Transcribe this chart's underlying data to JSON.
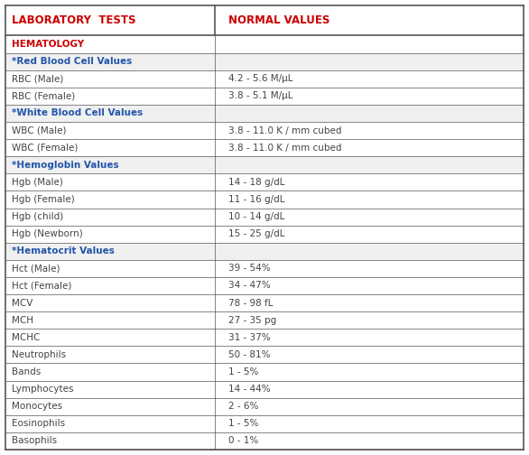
{
  "header": [
    "LABORATORY  TESTS",
    "NORMAL VALUES"
  ],
  "rows": [
    {
      "label": "HEMATOLOGY",
      "value": "",
      "type": "section_red"
    },
    {
      "label": "*Red Blood Cell Values",
      "value": "",
      "type": "subheader_blue"
    },
    {
      "label": "RBC (Male)",
      "value": "4.2 - 5.6 M/μL",
      "type": "data"
    },
    {
      "label": "RBC (Female)",
      "value": "3.8 - 5.1 M/μL",
      "type": "data"
    },
    {
      "label": "*White Blood Cell Values",
      "value": "",
      "type": "subheader_blue"
    },
    {
      "label": "WBC (Male)",
      "value": "3.8 - 11.0 K / mm cubed",
      "type": "data"
    },
    {
      "label": "WBC (Female)",
      "value": "3.8 - 11.0 K / mm cubed",
      "type": "data"
    },
    {
      "label": "*Hemoglobin Values",
      "value": "",
      "type": "subheader_blue"
    },
    {
      "label": "Hgb (Male)",
      "value": "14 - 18 g/dL",
      "type": "data"
    },
    {
      "label": "Hgb (Female)",
      "value": "11 - 16 g/dL",
      "type": "data"
    },
    {
      "label": "Hgb (child)",
      "value": "10 - 14 g/dL",
      "type": "data"
    },
    {
      "label": "Hgb (Newborn)",
      "value": "15 - 25 g/dL",
      "type": "data"
    },
    {
      "label": "*Hematocrit Values",
      "value": "",
      "type": "subheader_blue"
    },
    {
      "label": "Hct (Male)",
      "value": "39 - 54%",
      "type": "data"
    },
    {
      "label": "Hct (Female)",
      "value": "34 - 47%",
      "type": "data"
    },
    {
      "label": "MCV",
      "value": "78 - 98 fL",
      "type": "data"
    },
    {
      "label": "MCH",
      "value": "27 - 35 pg",
      "type": "data"
    },
    {
      "label": "MCHC",
      "value": "31 - 37%",
      "type": "data"
    },
    {
      "label": "Neutrophils",
      "value": "50 - 81%",
      "type": "data"
    },
    {
      "label": "Bands",
      "value": "1 - 5%",
      "type": "data"
    },
    {
      "label": "Lymphocytes",
      "value": "14 - 44%",
      "type": "data"
    },
    {
      "label": "Monocytes",
      "value": "2 - 6%",
      "type": "data"
    },
    {
      "label": "Eosinophils",
      "value": "1 - 5%",
      "type": "data"
    },
    {
      "label": "Basophils",
      "value": "0 - 1%",
      "type": "data"
    }
  ],
  "col_split": 0.405,
  "header_text_color": "#cc0000",
  "section_red_color": "#cc0000",
  "subheader_blue_color": "#2255aa",
  "data_text_color": "#444444",
  "border_color": "#555555",
  "subheader_bg": "#f0f0f0",
  "section_bg": "#ffffff",
  "data_bg": "#ffffff",
  "header_bg": "#ffffff",
  "font_size": 7.5,
  "header_font_size": 8.5,
  "fig_width": 5.86,
  "fig_height": 5.04,
  "dpi": 100
}
